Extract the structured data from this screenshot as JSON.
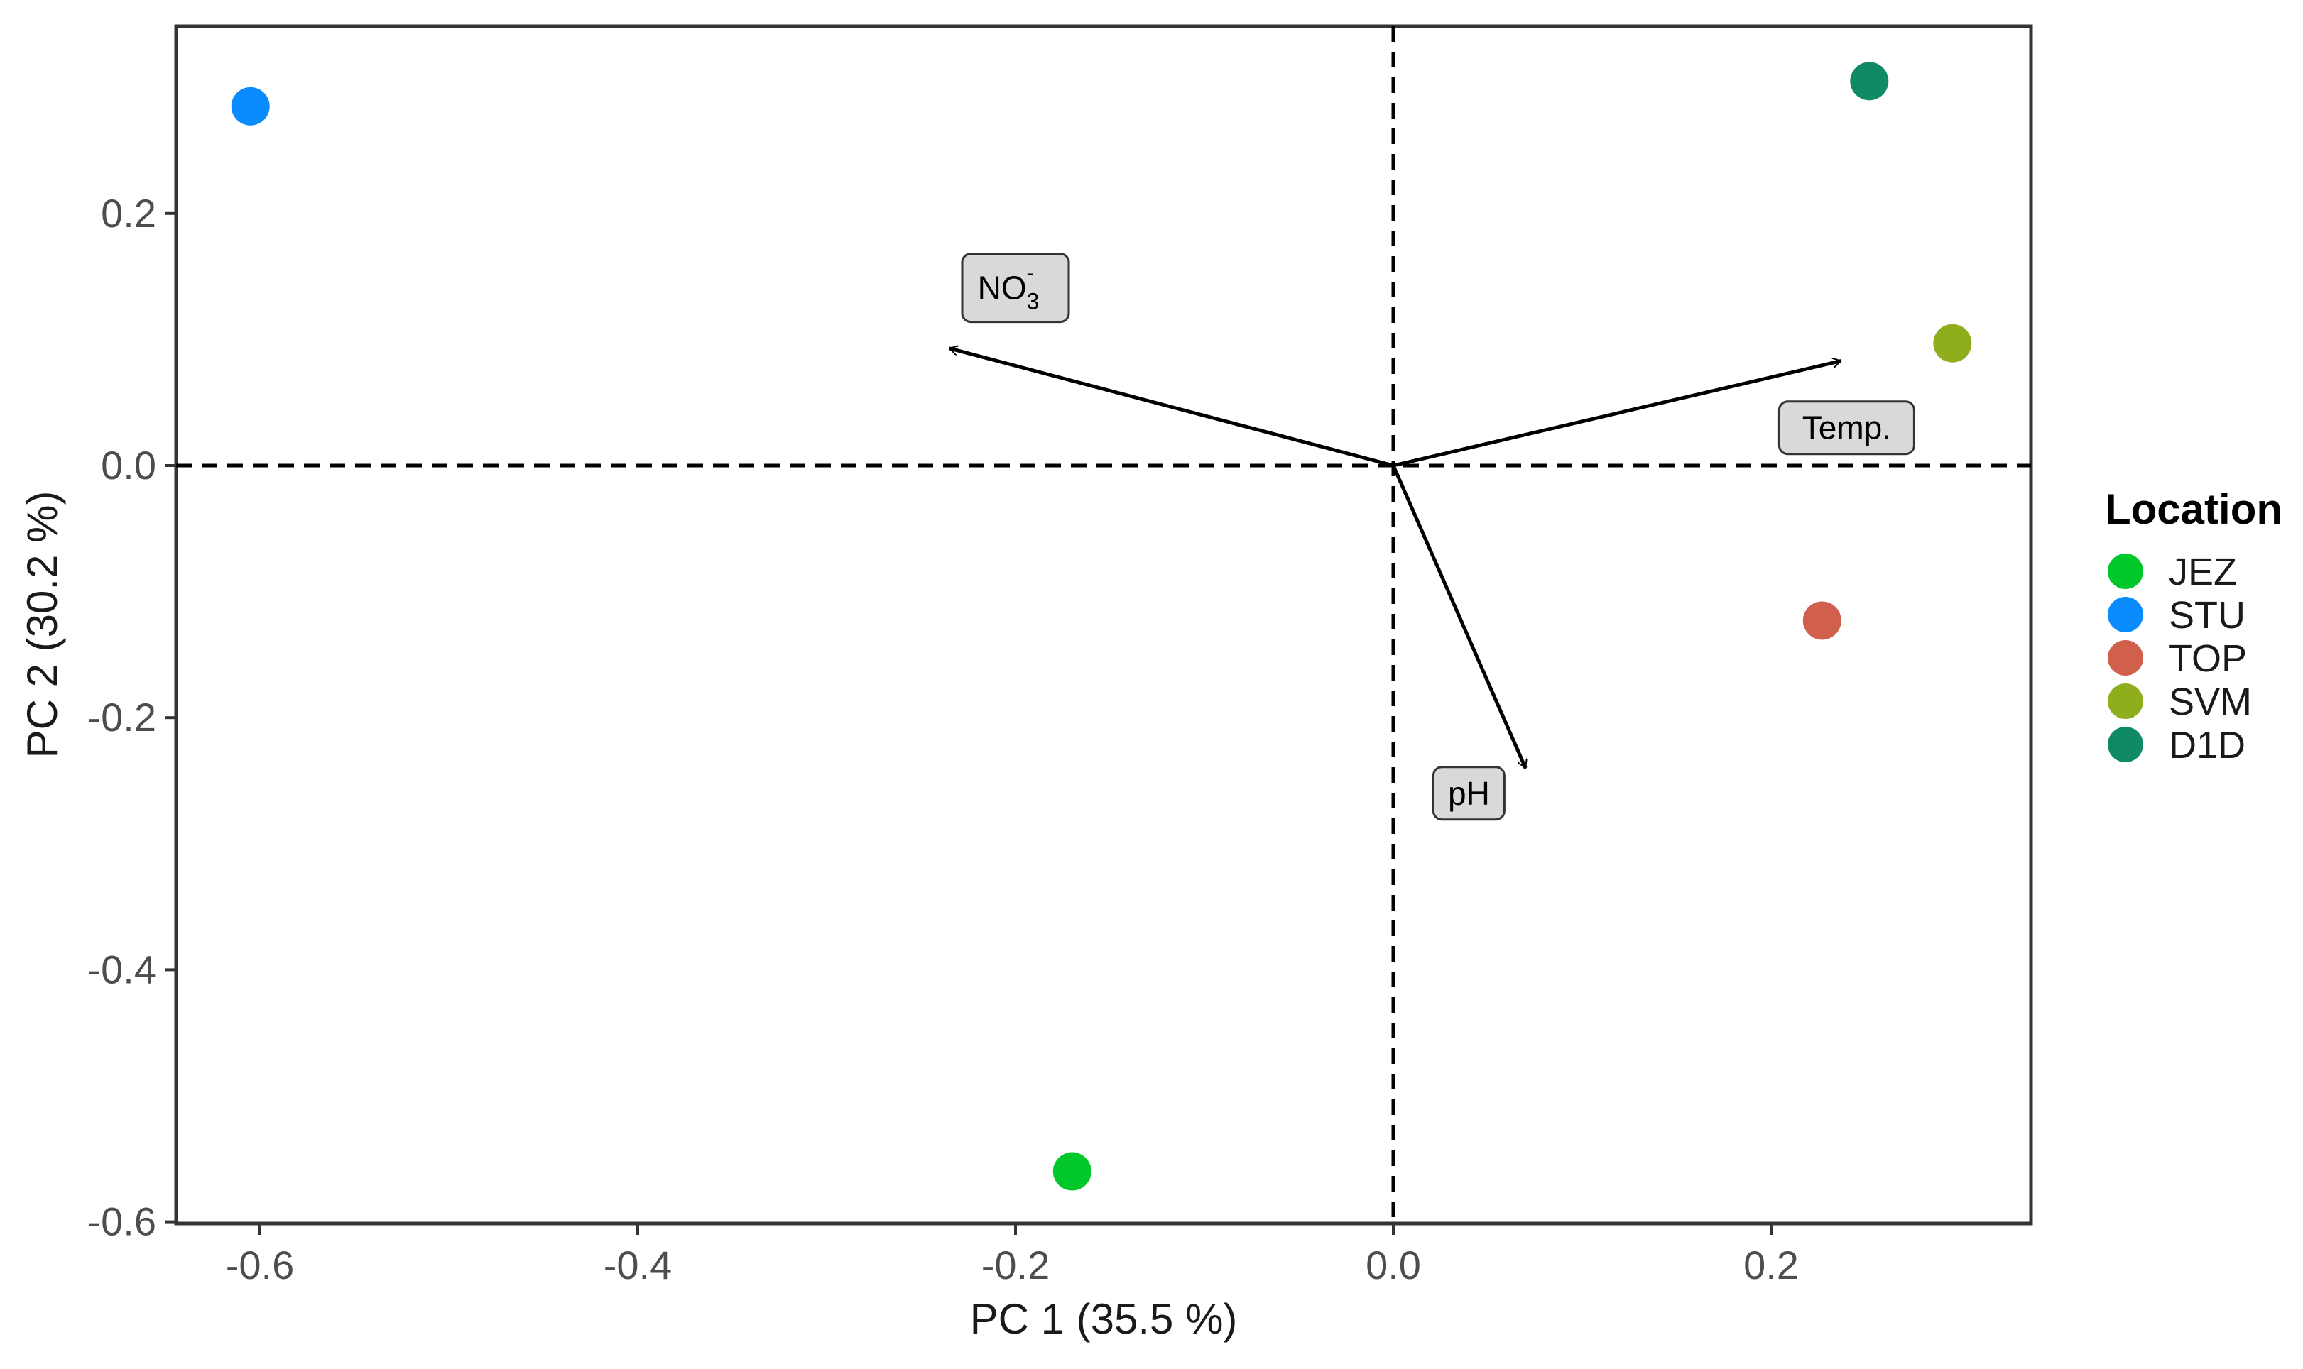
{
  "chart_data": {
    "type": "scatter",
    "xlabel": "PC 1 (35.5 %)",
    "ylabel": "PC 2 (30.2 %)",
    "xlim": [
      -0.65,
      0.34
    ],
    "ylim": [
      -0.6,
      0.35
    ],
    "xticks": [
      -0.6,
      -0.4,
      -0.2,
      0.0,
      0.2
    ],
    "yticks": [
      0.2,
      0.0,
      -0.2,
      -0.4,
      -0.6
    ],
    "xtick_labels": [
      "-0.6",
      "-0.4",
      "-0.2",
      "0.0",
      "0.2"
    ],
    "ytick_labels": [
      "0.2",
      "0.0",
      "-0.2",
      "-0.4",
      "-0.6"
    ],
    "grid": false,
    "reference_lines": {
      "x": 0,
      "y": 0,
      "style": "dashed"
    },
    "legend": {
      "title": "Location",
      "placement": "right"
    },
    "points": [
      {
        "name": "JEZ",
        "x": -0.17,
        "y": -0.56,
        "color": "#00c82b"
      },
      {
        "name": "STU",
        "x": -0.605,
        "y": 0.285,
        "color": "#0a8cff"
      },
      {
        "name": "TOP",
        "x": 0.227,
        "y": -0.123,
        "color": "#d0604c"
      },
      {
        "name": "SVM",
        "x": 0.296,
        "y": 0.097,
        "color": "#8fae1b"
      },
      {
        "name": "D1D",
        "x": 0.252,
        "y": 0.305,
        "color": "#0f8a64"
      }
    ],
    "vectors": [
      {
        "name": "NO3-",
        "label": "NO",
        "sub": "3",
        "sup": "-",
        "x": -0.235,
        "y": 0.093,
        "label_x": -0.2,
        "label_y": 0.141
      },
      {
        "name": "Temp.",
        "label": "Temp.",
        "x": 0.237,
        "y": 0.083,
        "label_x": 0.24,
        "label_y": 0.03
      },
      {
        "name": "pH",
        "label": "pH",
        "x": 0.07,
        "y": -0.24,
        "label_x": 0.04,
        "label_y": -0.26
      }
    ]
  }
}
